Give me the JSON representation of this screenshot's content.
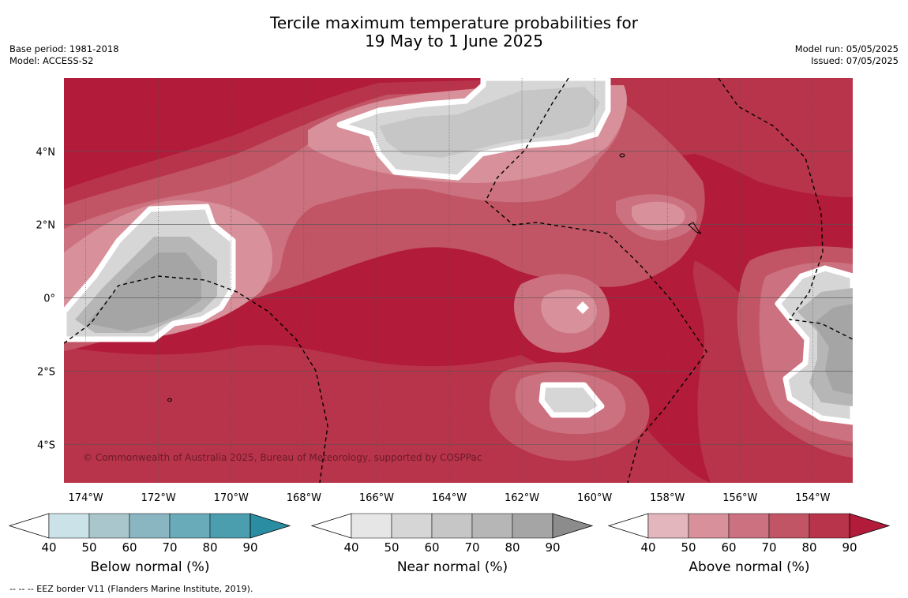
{
  "title": {
    "line1": "Tercile maximum temperature probabilities for",
    "line2": "19 May to 1 June 2025"
  },
  "meta": {
    "base_period": "Base period: 1981-2018",
    "model": "Model: ACCESS-S2",
    "model_run": "Model run: 05/05/2025",
    "issued": "Issued: 07/05/2025"
  },
  "map": {
    "lon_range": [
      -174.6,
      -152.9
    ],
    "lat_range": [
      -5.05,
      6.0
    ],
    "lon_ticks": [
      "174°W",
      "172°W",
      "170°W",
      "168°W",
      "166°W",
      "164°W",
      "162°W",
      "160°W",
      "158°W",
      "156°W",
      "154°W"
    ],
    "lon_tick_values": [
      -174,
      -172,
      -170,
      -168,
      -166,
      -164,
      -162,
      -160,
      -158,
      -156,
      -154
    ],
    "lat_ticks": [
      "4°N",
      "2°N",
      "0°",
      "2°S",
      "4°S"
    ],
    "lat_tick_values": [
      4,
      2,
      0,
      -2,
      -4
    ],
    "copyright": "© Commonwealth of Australia 2025, Bureau of Meteorology, supported by COSPPac",
    "colors": {
      "above": [
        "#e2b6bc",
        "#d8909b",
        "#cc717f",
        "#c25565",
        "#b8344a",
        "#b21b3a"
      ],
      "near": [
        "#e6e6e6",
        "#d6d6d6",
        "#c6c6c6",
        "#b6b6b6",
        "#a5a5a5",
        "#8c8c8c"
      ],
      "below": [
        "#cae2e8",
        "#a9c6cc",
        "#8ab6c2",
        "#6aabb9",
        "#4a9ead",
        "#2a8da1"
      ],
      "gridline": "#555555",
      "eez_line": "#000000"
    }
  },
  "colorbars": [
    {
      "name": "below",
      "label": "Below normal (%)",
      "ticks": [
        "40",
        "50",
        "60",
        "70",
        "80",
        "90"
      ],
      "colors": [
        "#ffffff",
        "#cae2e8",
        "#a9c6cc",
        "#8ab6c2",
        "#6aabb9",
        "#4a9ead",
        "#2a8da1"
      ]
    },
    {
      "name": "near",
      "label": "Near normal (%)",
      "ticks": [
        "40",
        "50",
        "60",
        "70",
        "80",
        "90"
      ],
      "colors": [
        "#ffffff",
        "#e6e6e6",
        "#d6d6d6",
        "#c6c6c6",
        "#b6b6b6",
        "#a5a5a5",
        "#8c8c8c"
      ]
    },
    {
      "name": "above",
      "label": "Above normal (%)",
      "ticks": [
        "40",
        "50",
        "60",
        "70",
        "80",
        "90"
      ],
      "colors": [
        "#ffffff",
        "#e2b6bc",
        "#d8909b",
        "#cc717f",
        "#c25565",
        "#b8344a",
        "#b21b3a"
      ]
    }
  ],
  "footer": "-- -- -- EEZ border V11 (Flanders Marine Institute, 2019)."
}
